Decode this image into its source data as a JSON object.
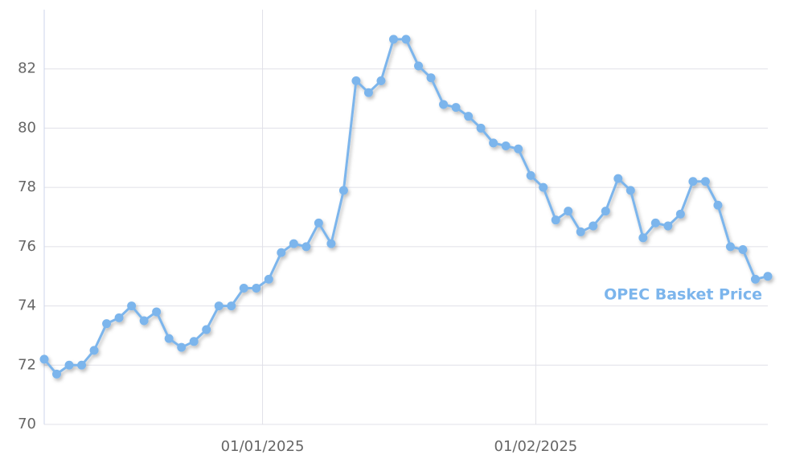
{
  "chart_data": {
    "type": "line",
    "x": [
      0,
      1,
      2,
      3,
      4,
      5,
      6,
      7,
      8,
      9,
      10,
      11,
      12,
      13,
      14,
      15,
      16,
      17,
      18,
      19,
      20,
      21,
      22,
      23,
      24,
      25,
      26,
      27,
      28,
      29,
      30,
      31,
      32,
      33,
      34,
      35,
      36,
      37,
      38,
      39,
      40,
      41,
      42,
      43,
      44,
      45,
      46,
      47,
      48,
      49,
      50,
      51,
      52,
      53,
      54,
      55,
      56,
      57,
      58
    ],
    "series": [
      {
        "name": "OPEC Basket Price",
        "color": "#7cb5ec",
        "values": [
          72.2,
          71.7,
          72.0,
          72.0,
          72.5,
          73.4,
          73.6,
          74.0,
          73.5,
          73.8,
          72.9,
          72.6,
          72.8,
          73.2,
          74.0,
          74.0,
          74.6,
          74.6,
          74.9,
          75.8,
          76.1,
          76.0,
          76.8,
          76.1,
          77.9,
          81.6,
          81.2,
          81.6,
          83.0,
          83.0,
          82.1,
          81.7,
          80.8,
          80.7,
          80.4,
          80.0,
          79.5,
          79.4,
          79.3,
          78.4,
          78.0,
          76.9,
          77.2,
          76.5,
          76.7,
          77.2,
          78.3,
          77.9,
          76.3,
          76.8,
          76.7,
          77.1,
          78.2,
          78.2,
          77.4,
          76.0,
          75.9,
          74.9,
          75.0
        ]
      }
    ],
    "xlim": [
      0,
      58
    ],
    "xticks": [
      {
        "value": 17.5,
        "label": "01/01/2025"
      },
      {
        "value": 39.4,
        "label": "01/02/2025"
      }
    ],
    "ylim": [
      70,
      84
    ],
    "yticks": [
      70,
      72,
      74,
      76,
      78,
      80,
      82
    ],
    "grid": true
  }
}
